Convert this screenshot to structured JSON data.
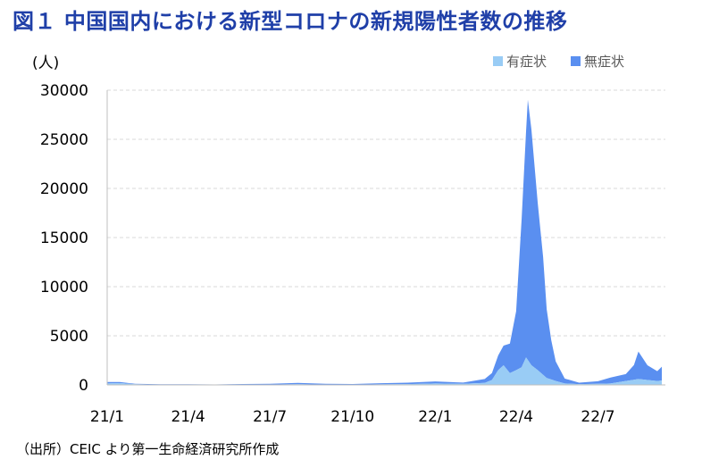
{
  "title": "図１ 中国国内における新型コロナの新規陽性者数の推移",
  "source": "（出所）CEIC より第一生命経済研究所作成",
  "chart_data": {
    "type": "area",
    "stacked": true,
    "ylabel": "(人)",
    "ylim": [
      0,
      30000
    ],
    "y_ticks": [
      0,
      5000,
      10000,
      15000,
      20000,
      25000,
      30000
    ],
    "x_tick_labels": [
      "21/1",
      "21/4",
      "21/7",
      "21/10",
      "22/1",
      "22/4",
      "22/7"
    ],
    "x_range": [
      "2021-01",
      "2022-09"
    ],
    "legend_position": "top-right",
    "grid": "horizontal dashed",
    "series": [
      {
        "name": "有症状",
        "color": "#99ccf5",
        "points": [
          [
            "2021-01-01",
            150
          ],
          [
            "2021-01-15",
            180
          ],
          [
            "2021-02-01",
            60
          ],
          [
            "2021-03-01",
            20
          ],
          [
            "2021-04-01",
            20
          ],
          [
            "2021-05-01",
            15
          ],
          [
            "2021-06-01",
            30
          ],
          [
            "2021-07-01",
            40
          ],
          [
            "2021-08-01",
            60
          ],
          [
            "2021-09-01",
            30
          ],
          [
            "2021-10-01",
            30
          ],
          [
            "2021-11-01",
            50
          ],
          [
            "2021-12-01",
            80
          ],
          [
            "2022-01-01",
            150
          ],
          [
            "2022-02-01",
            120
          ],
          [
            "2022-02-25",
            200
          ],
          [
            "2022-03-05",
            500
          ],
          [
            "2022-03-12",
            1500
          ],
          [
            "2022-03-18",
            2000
          ],
          [
            "2022-03-25",
            1200
          ],
          [
            "2022-04-01",
            1500
          ],
          [
            "2022-04-07",
            1800
          ],
          [
            "2022-04-12",
            2800
          ],
          [
            "2022-04-18",
            2000
          ],
          [
            "2022-04-25",
            1500
          ],
          [
            "2022-05-05",
            700
          ],
          [
            "2022-05-15",
            400
          ],
          [
            "2022-05-25",
            150
          ],
          [
            "2022-06-10",
            80
          ],
          [
            "2022-07-01",
            120
          ],
          [
            "2022-07-15",
            150
          ],
          [
            "2022-08-01",
            400
          ],
          [
            "2022-08-15",
            600
          ],
          [
            "2022-08-25",
            500
          ],
          [
            "2022-09-05",
            400
          ],
          [
            "2022-09-10",
            450
          ]
        ]
      },
      {
        "name": "無症状",
        "color": "#5a8ff0",
        "points": [
          [
            "2021-01-01",
            150
          ],
          [
            "2021-01-15",
            120
          ],
          [
            "2021-02-01",
            60
          ],
          [
            "2021-03-01",
            40
          ],
          [
            "2021-04-01",
            40
          ],
          [
            "2021-05-01",
            30
          ],
          [
            "2021-06-01",
            60
          ],
          [
            "2021-07-01",
            80
          ],
          [
            "2021-08-01",
            150
          ],
          [
            "2021-09-01",
            80
          ],
          [
            "2021-10-01",
            60
          ],
          [
            "2021-11-01",
            120
          ],
          [
            "2021-12-01",
            150
          ],
          [
            "2022-01-01",
            200
          ],
          [
            "2022-02-01",
            120
          ],
          [
            "2022-02-25",
            400
          ],
          [
            "2022-03-05",
            700
          ],
          [
            "2022-03-12",
            1500
          ],
          [
            "2022-03-18",
            2000
          ],
          [
            "2022-03-25",
            3000
          ],
          [
            "2022-04-01",
            6000
          ],
          [
            "2022-04-07",
            15000
          ],
          [
            "2022-04-12",
            23000
          ],
          [
            "2022-04-14",
            26500
          ],
          [
            "2022-04-18",
            24000
          ],
          [
            "2022-04-25",
            17000
          ],
          [
            "2022-05-01",
            12000
          ],
          [
            "2022-05-05",
            7000
          ],
          [
            "2022-05-10",
            4000
          ],
          [
            "2022-05-15",
            2000
          ],
          [
            "2022-05-25",
            500
          ],
          [
            "2022-06-10",
            150
          ],
          [
            "2022-07-01",
            250
          ],
          [
            "2022-07-15",
            600
          ],
          [
            "2022-08-01",
            700
          ],
          [
            "2022-08-10",
            1500
          ],
          [
            "2022-08-15",
            2800
          ],
          [
            "2022-08-25",
            1500
          ],
          [
            "2022-09-05",
            1000
          ],
          [
            "2022-09-10",
            1400
          ]
        ]
      }
    ]
  }
}
